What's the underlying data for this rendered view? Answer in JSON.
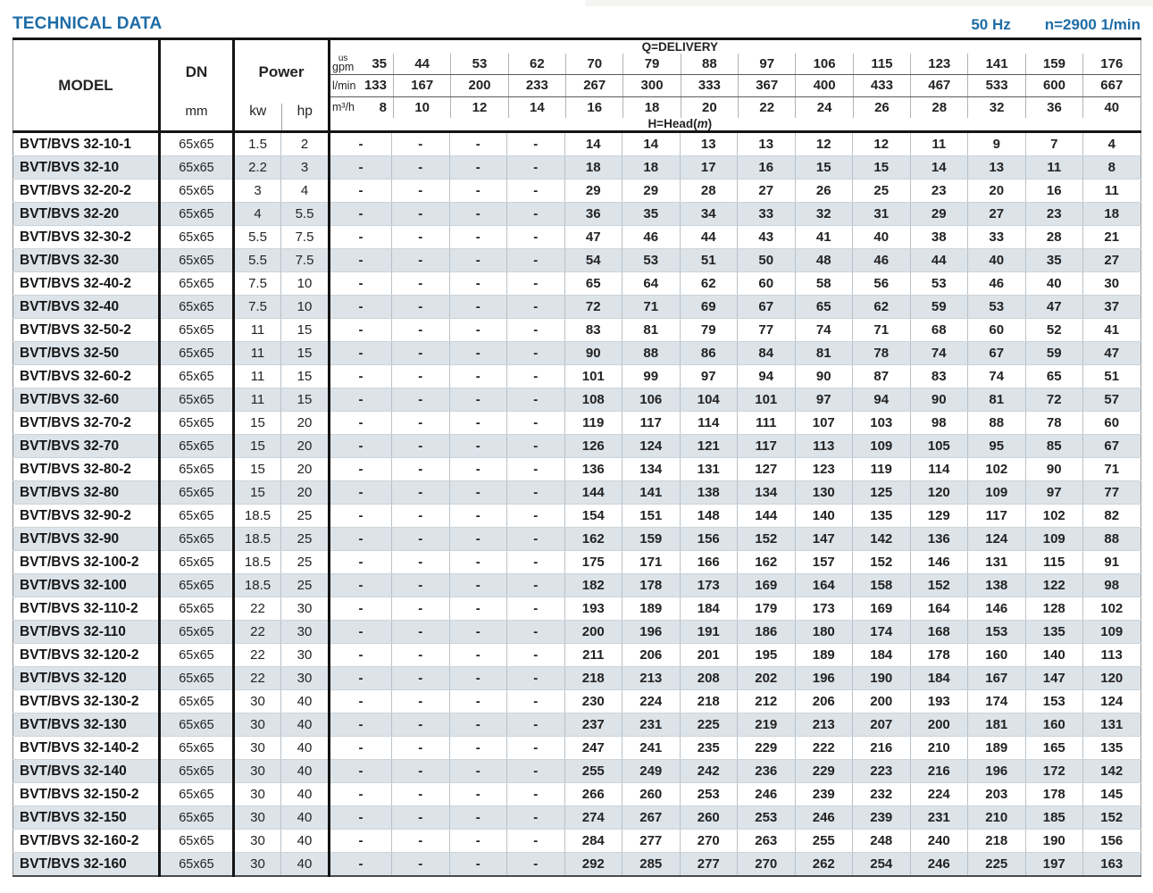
{
  "header": {
    "title": "TECHNICAL DATA",
    "frequency": "50 Hz",
    "speed": "n=2900 1/min"
  },
  "colors": {
    "accent_blue": "#1e6ca6",
    "row_shade": "#dce3e9"
  },
  "table": {
    "col_model": "MODEL",
    "col_dn": "DN",
    "col_dn_unit": "mm",
    "col_power": "Power",
    "col_kw": "kw",
    "col_hp": "hp",
    "q_delivery_label": "Q=DELIVERY",
    "head_label_prefix": "H=Head(",
    "head_label_unit": "m",
    "head_label_suffix": ")",
    "unit_us": "us",
    "unit_gpm": "gpm",
    "unit_lmin": "l/min",
    "unit_m3h": "m³/h",
    "gpm": [
      35,
      44,
      53,
      62,
      70,
      79,
      88,
      97,
      106,
      115,
      123,
      141,
      159,
      176
    ],
    "lmin": [
      133,
      167,
      200,
      233,
      267,
      300,
      333,
      367,
      400,
      433,
      467,
      533,
      600,
      667
    ],
    "m3h": [
      8,
      10,
      12,
      14,
      16,
      18,
      20,
      22,
      24,
      26,
      28,
      32,
      36,
      40
    ],
    "rows": [
      {
        "model": "BVT/BVS 32-10-1",
        "dn": "65x65",
        "kw": "1.5",
        "hp": "2",
        "head": [
          "-",
          "-",
          "-",
          "-",
          14,
          14,
          13,
          13,
          12,
          12,
          11,
          9,
          7,
          4
        ]
      },
      {
        "model": "BVT/BVS 32-10",
        "dn": "65x65",
        "kw": "2.2",
        "hp": "3",
        "head": [
          "-",
          "-",
          "-",
          "-",
          18,
          18,
          17,
          16,
          15,
          15,
          14,
          13,
          11,
          8
        ]
      },
      {
        "model": "BVT/BVS 32-20-2",
        "dn": "65x65",
        "kw": "3",
        "hp": "4",
        "head": [
          "-",
          "-",
          "-",
          "-",
          29,
          29,
          28,
          27,
          26,
          25,
          23,
          20,
          16,
          11
        ]
      },
      {
        "model": "BVT/BVS 32-20",
        "dn": "65x65",
        "kw": "4",
        "hp": "5.5",
        "head": [
          "-",
          "-",
          "-",
          "-",
          36,
          35,
          34,
          33,
          32,
          31,
          29,
          27,
          23,
          18
        ]
      },
      {
        "model": "BVT/BVS 32-30-2",
        "dn": "65x65",
        "kw": "5.5",
        "hp": "7.5",
        "head": [
          "-",
          "-",
          "-",
          "-",
          47,
          46,
          44,
          43,
          41,
          40,
          38,
          33,
          28,
          21
        ]
      },
      {
        "model": "BVT/BVS 32-30",
        "dn": "65x65",
        "kw": "5.5",
        "hp": "7.5",
        "head": [
          "-",
          "-",
          "-",
          "-",
          54,
          53,
          51,
          50,
          48,
          46,
          44,
          40,
          35,
          27
        ]
      },
      {
        "model": "BVT/BVS 32-40-2",
        "dn": "65x65",
        "kw": "7.5",
        "hp": "10",
        "head": [
          "-",
          "-",
          "-",
          "-",
          65,
          64,
          62,
          60,
          58,
          56,
          53,
          46,
          40,
          30
        ]
      },
      {
        "model": "BVT/BVS 32-40",
        "dn": "65x65",
        "kw": "7.5",
        "hp": "10",
        "head": [
          "-",
          "-",
          "-",
          "-",
          72,
          71,
          69,
          67,
          65,
          62,
          59,
          53,
          47,
          37
        ]
      },
      {
        "model": "BVT/BVS 32-50-2",
        "dn": "65x65",
        "kw": "11",
        "hp": "15",
        "head": [
          "-",
          "-",
          "-",
          "-",
          83,
          81,
          79,
          77,
          74,
          71,
          68,
          60,
          52,
          41
        ]
      },
      {
        "model": "BVT/BVS 32-50",
        "dn": "65x65",
        "kw": "11",
        "hp": "15",
        "head": [
          "-",
          "-",
          "-",
          "-",
          90,
          88,
          86,
          84,
          81,
          78,
          74,
          67,
          59,
          47
        ]
      },
      {
        "model": "BVT/BVS 32-60-2",
        "dn": "65x65",
        "kw": "11",
        "hp": "15",
        "head": [
          "-",
          "-",
          "-",
          "-",
          101,
          99,
          97,
          94,
          90,
          87,
          83,
          74,
          65,
          51
        ]
      },
      {
        "model": "BVT/BVS 32-60",
        "dn": "65x65",
        "kw": "11",
        "hp": "15",
        "head": [
          "-",
          "-",
          "-",
          "-",
          108,
          106,
          104,
          101,
          97,
          94,
          90,
          81,
          72,
          57
        ]
      },
      {
        "model": "BVT/BVS 32-70-2",
        "dn": "65x65",
        "kw": "15",
        "hp": "20",
        "head": [
          "-",
          "-",
          "-",
          "-",
          119,
          117,
          114,
          111,
          107,
          103,
          98,
          88,
          78,
          60
        ]
      },
      {
        "model": "BVT/BVS 32-70",
        "dn": "65x65",
        "kw": "15",
        "hp": "20",
        "head": [
          "-",
          "-",
          "-",
          "-",
          126,
          124,
          121,
          117,
          113,
          109,
          105,
          95,
          85,
          67
        ]
      },
      {
        "model": "BVT/BVS 32-80-2",
        "dn": "65x65",
        "kw": "15",
        "hp": "20",
        "head": [
          "-",
          "-",
          "-",
          "-",
          136,
          134,
          131,
          127,
          123,
          119,
          114,
          102,
          90,
          71
        ]
      },
      {
        "model": "BVT/BVS 32-80",
        "dn": "65x65",
        "kw": "15",
        "hp": "20",
        "head": [
          "-",
          "-",
          "-",
          "-",
          144,
          141,
          138,
          134,
          130,
          125,
          120,
          109,
          97,
          77
        ]
      },
      {
        "model": "BVT/BVS 32-90-2",
        "dn": "65x65",
        "kw": "18.5",
        "hp": "25",
        "head": [
          "-",
          "-",
          "-",
          "-",
          154,
          151,
          148,
          144,
          140,
          135,
          129,
          117,
          102,
          82
        ]
      },
      {
        "model": "BVT/BVS 32-90",
        "dn": "65x65",
        "kw": "18.5",
        "hp": "25",
        "head": [
          "-",
          "-",
          "-",
          "-",
          162,
          159,
          156,
          152,
          147,
          142,
          136,
          124,
          109,
          88
        ]
      },
      {
        "model": "BVT/BVS 32-100-2",
        "dn": "65x65",
        "kw": "18.5",
        "hp": "25",
        "head": [
          "-",
          "-",
          "-",
          "-",
          175,
          171,
          166,
          162,
          157,
          152,
          146,
          131,
          115,
          91
        ]
      },
      {
        "model": "BVT/BVS 32-100",
        "dn": "65x65",
        "kw": "18.5",
        "hp": "25",
        "head": [
          "-",
          "-",
          "-",
          "-",
          182,
          178,
          173,
          169,
          164,
          158,
          152,
          138,
          122,
          98
        ]
      },
      {
        "model": "BVT/BVS 32-110-2",
        "dn": "65x65",
        "kw": "22",
        "hp": "30",
        "head": [
          "-",
          "-",
          "-",
          "-",
          193,
          189,
          184,
          179,
          173,
          169,
          164,
          146,
          128,
          102
        ]
      },
      {
        "model": "BVT/BVS 32-110",
        "dn": "65x65",
        "kw": "22",
        "hp": "30",
        "head": [
          "-",
          "-",
          "-",
          "-",
          200,
          196,
          191,
          186,
          180,
          174,
          168,
          153,
          135,
          109
        ]
      },
      {
        "model": "BVT/BVS 32-120-2",
        "dn": "65x65",
        "kw": "22",
        "hp": "30",
        "head": [
          "-",
          "-",
          "-",
          "-",
          211,
          206,
          201,
          195,
          189,
          184,
          178,
          160,
          140,
          113
        ]
      },
      {
        "model": "BVT/BVS 32-120",
        "dn": "65x65",
        "kw": "22",
        "hp": "30",
        "head": [
          "-",
          "-",
          "-",
          "-",
          218,
          213,
          208,
          202,
          196,
          190,
          184,
          167,
          147,
          120
        ]
      },
      {
        "model": "BVT/BVS 32-130-2",
        "dn": "65x65",
        "kw": "30",
        "hp": "40",
        "head": [
          "-",
          "-",
          "-",
          "-",
          230,
          224,
          218,
          212,
          206,
          200,
          193,
          174,
          153,
          124
        ]
      },
      {
        "model": "BVT/BVS 32-130",
        "dn": "65x65",
        "kw": "30",
        "hp": "40",
        "head": [
          "-",
          "-",
          "-",
          "-",
          237,
          231,
          225,
          219,
          213,
          207,
          200,
          181,
          160,
          131
        ]
      },
      {
        "model": "BVT/BVS 32-140-2",
        "dn": "65x65",
        "kw": "30",
        "hp": "40",
        "head": [
          "-",
          "-",
          "-",
          "-",
          247,
          241,
          235,
          229,
          222,
          216,
          210,
          189,
          165,
          135
        ]
      },
      {
        "model": "BVT/BVS 32-140",
        "dn": "65x65",
        "kw": "30",
        "hp": "40",
        "head": [
          "-",
          "-",
          "-",
          "-",
          255,
          249,
          242,
          236,
          229,
          223,
          216,
          196,
          172,
          142
        ]
      },
      {
        "model": "BVT/BVS 32-150-2",
        "dn": "65x65",
        "kw": "30",
        "hp": "40",
        "head": [
          "-",
          "-",
          "-",
          "-",
          266,
          260,
          253,
          246,
          239,
          232,
          224,
          203,
          178,
          145
        ]
      },
      {
        "model": "BVT/BVS 32-150",
        "dn": "65x65",
        "kw": "30",
        "hp": "40",
        "head": [
          "-",
          "-",
          "-",
          "-",
          274,
          267,
          260,
          253,
          246,
          239,
          231,
          210,
          185,
          152
        ]
      },
      {
        "model": "BVT/BVS 32-160-2",
        "dn": "65x65",
        "kw": "30",
        "hp": "40",
        "head": [
          "-",
          "-",
          "-",
          "-",
          284,
          277,
          270,
          263,
          255,
          248,
          240,
          218,
          190,
          156
        ]
      },
      {
        "model": "BVT/BVS 32-160",
        "dn": "65x65",
        "kw": "30",
        "hp": "40",
        "head": [
          "-",
          "-",
          "-",
          "-",
          292,
          285,
          277,
          270,
          262,
          254,
          246,
          225,
          197,
          163
        ]
      }
    ]
  }
}
